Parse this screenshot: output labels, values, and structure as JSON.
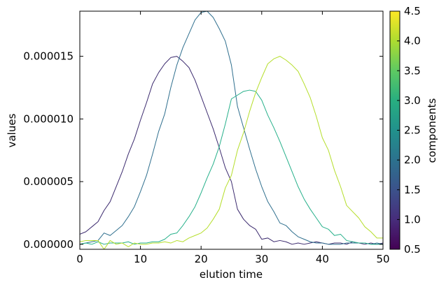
{
  "chart_data": {
    "type": "line",
    "xlabel": "elution time",
    "ylabel": "values",
    "xlim": [
      0,
      50
    ],
    "ylim": [
      -4e-07,
      1.86e-05
    ],
    "x_ticks": [
      0,
      10,
      20,
      30,
      40,
      50
    ],
    "x_tick_labels": [
      "0",
      "10",
      "20",
      "30",
      "40",
      "50"
    ],
    "y_ticks": [
      0,
      5e-06,
      1e-05,
      1.5e-05
    ],
    "y_tick_labels": [
      "0.000000",
      "0.000005",
      "0.000010",
      "0.000015"
    ],
    "grid": false,
    "colorbar": {
      "label": "components",
      "colormap": "viridis",
      "range": [
        0.5,
        4.5
      ],
      "ticks": [
        0.5,
        1.0,
        1.5,
        2.0,
        2.5,
        3.0,
        3.5,
        4.0,
        4.5
      ],
      "tick_labels": [
        "0.5",
        "1.0",
        "1.5",
        "2.0",
        "2.5",
        "3.0",
        "3.5",
        "4.0",
        "4.5"
      ]
    },
    "x": [
      0,
      1,
      2,
      3,
      4,
      5,
      6,
      7,
      8,
      9,
      10,
      11,
      12,
      13,
      14,
      15,
      16,
      17,
      18,
      19,
      20,
      21,
      22,
      23,
      24,
      25,
      26,
      27,
      28,
      29,
      30,
      31,
      32,
      33,
      34,
      35,
      36,
      37,
      38,
      39,
      40,
      41,
      42,
      43,
      44,
      45,
      46,
      47,
      48,
      49,
      50
    ],
    "series": [
      {
        "component": 1,
        "color": "#3b2a6e",
        "values": [
          8e-07,
          1e-06,
          1.4e-06,
          1.8e-06,
          2.7e-06,
          3.4e-06,
          4.6e-06,
          5.8e-06,
          7.2e-06,
          8.4e-06,
          9.9e-06,
          1.13e-05,
          1.28e-05,
          1.37e-05,
          1.44e-05,
          1.49e-05,
          1.5e-05,
          1.46e-05,
          1.41e-05,
          1.31e-05,
          1.18e-05,
          1.05e-05,
          9.2e-06,
          7.7e-06,
          6.1e-06,
          5e-06,
          2.8e-06,
          2e-06,
          1.5e-06,
          1.2e-06,
          4e-07,
          5e-07,
          2e-07,
          3e-07,
          2e-07,
          0.0,
          1e-07,
          0.0,
          1e-07,
          2e-07,
          1e-07,
          0.0,
          1e-07,
          1e-07,
          0.0,
          2e-07,
          1e-07,
          0.0,
          1e-07,
          0.0,
          1e-07
        ]
      },
      {
        "component": 2,
        "color": "#2f6f8e",
        "values": [
          0.0,
          1e-07,
          2e-07,
          3e-07,
          9e-07,
          7e-07,
          1.1e-06,
          1.5e-06,
          2.2e-06,
          3e-06,
          4.2e-06,
          5.5e-06,
          7.2e-06,
          9e-06,
          1.04e-05,
          1.25e-05,
          1.43e-05,
          1.57e-05,
          1.68e-05,
          1.79e-05,
          1.85e-05,
          1.86e-05,
          1.81e-05,
          1.72e-05,
          1.62e-05,
          1.43e-05,
          1.1e-05,
          9.3e-06,
          7.6e-06,
          6e-06,
          4.6e-06,
          3.4e-06,
          2.6e-06,
          1.7e-06,
          1.5e-06,
          1e-06,
          6e-07,
          4e-07,
          2e-07,
          1e-07,
          1e-07,
          0.0,
          0.0,
          0.0,
          1e-07,
          1e-07,
          1e-07,
          1e-07,
          0.0,
          1e-07,
          0.0
        ]
      },
      {
        "component": 3,
        "color": "#26b08a",
        "values": [
          0.0,
          1e-07,
          0.0,
          2e-07,
          0.0,
          1e-07,
          1e-07,
          1e-07,
          2e-07,
          0.0,
          1e-07,
          1e-07,
          2e-07,
          2e-07,
          4e-07,
          8e-07,
          9e-07,
          1.5e-06,
          2.2e-06,
          3e-06,
          4.1e-06,
          5.3e-06,
          6.4e-06,
          7.8e-06,
          9.6e-06,
          1.16e-05,
          1.19e-05,
          1.22e-05,
          1.23e-05,
          1.22e-05,
          1.15e-05,
          1.03e-05,
          9.3e-06,
          8.2e-06,
          7e-06,
          5.8e-06,
          4.6e-06,
          3.6e-06,
          2.8e-06,
          2.1e-06,
          1.4e-06,
          1.2e-06,
          7e-07,
          8e-07,
          3e-07,
          2e-07,
          1e-07,
          1e-07,
          0.0,
          0.0,
          0.0
        ]
      },
      {
        "component": 4,
        "color": "#b5de2b",
        "values": [
          2e-07,
          3e-07,
          3e-07,
          3e-07,
          -4e-07,
          3e-07,
          0.0,
          1e-07,
          -2e-07,
          1e-07,
          0.0,
          0.0,
          1e-07,
          1e-07,
          2e-07,
          1e-07,
          3e-07,
          2e-07,
          5e-07,
          7e-07,
          9e-07,
          1.3e-06,
          2e-06,
          2.8e-06,
          4.5e-06,
          5.5e-06,
          7.5e-06,
          8.9e-06,
          1.06e-05,
          1.21e-05,
          1.33e-05,
          1.44e-05,
          1.48e-05,
          1.5e-05,
          1.47e-05,
          1.43e-05,
          1.38e-05,
          1.28e-05,
          1.17e-05,
          1.02e-05,
          8.5e-06,
          7.5e-06,
          5.9e-06,
          4.6e-06,
          3.1e-06,
          2.6e-06,
          2.1e-06,
          1.4e-06,
          1e-06,
          5e-07,
          5e-07
        ]
      }
    ]
  }
}
